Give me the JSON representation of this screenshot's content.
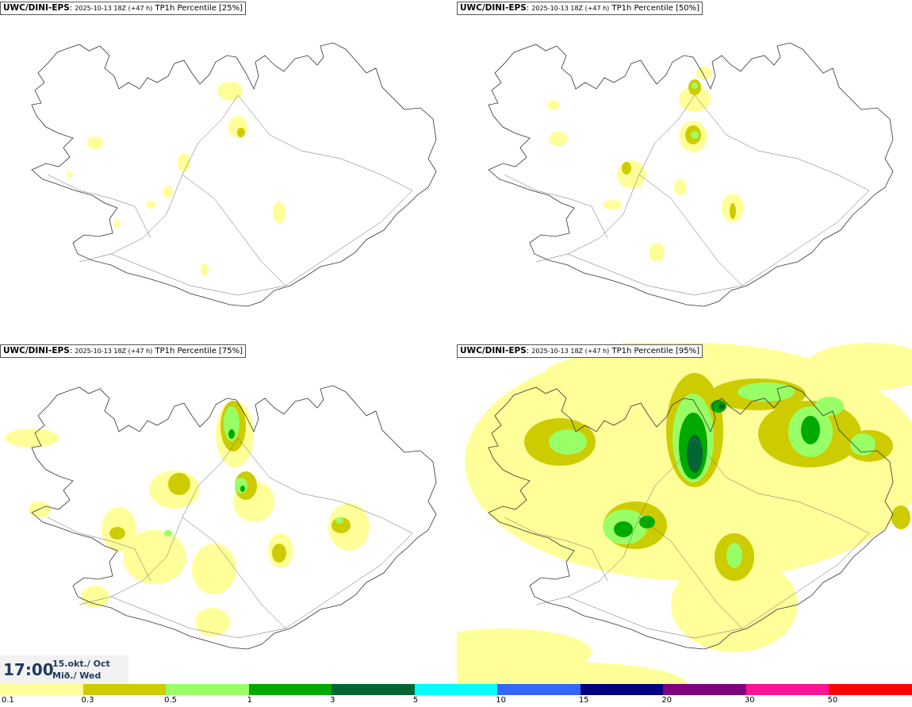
{
  "panels": [
    {
      "source": "UWC/DINI-EPS",
      "run": "2025-10-13 18Z (+47 h)",
      "field": "TP1h Percentile [25%]",
      "level": 1
    },
    {
      "source": "UWC/DINI-EPS",
      "run": "2025-10-13 18Z (+47 h)",
      "field": "TP1h Percentile [50%]",
      "level": 2
    },
    {
      "source": "UWC/DINI-EPS",
      "run": "2025-10-13 18Z (+47 h)",
      "field": "TP1h Percentile [75%]",
      "level": 3
    },
    {
      "source": "UWC/DINI-EPS",
      "run": "2025-10-13 18Z (+47 h)",
      "field": "TP1h Percentile [95%]",
      "level": 4
    }
  ],
  "valid": {
    "time": "17:00",
    "date": "15.okt./ Oct",
    "day": "Mið./ Wed"
  },
  "legend": {
    "colors": [
      "#ffff99",
      "#cccc00",
      "#99ff66",
      "#00aa00",
      "#006633",
      "#00ffff",
      "#3366ff",
      "#000080",
      "#800080",
      "#ff1493",
      "#ff0000"
    ],
    "labels": [
      "0.1",
      "0.3",
      "0.5",
      "1",
      "3",
      "5",
      "10",
      "15",
      "20",
      "30",
      "50"
    ]
  }
}
